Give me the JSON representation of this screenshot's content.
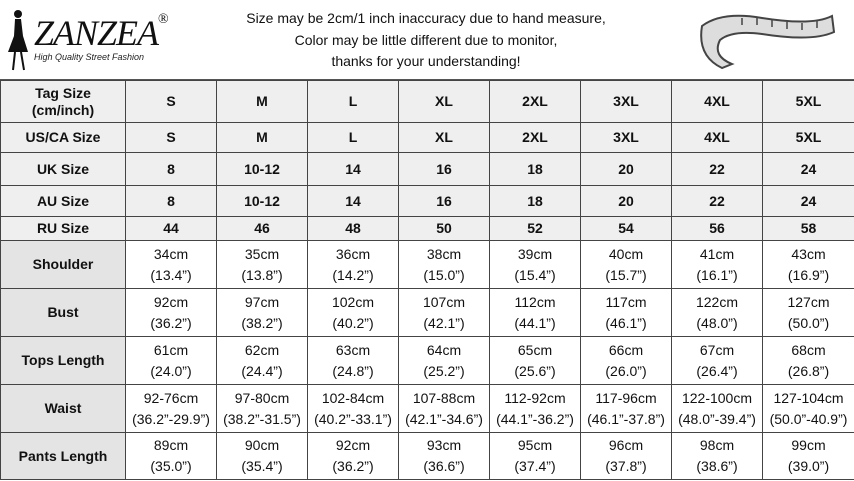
{
  "header": {
    "brand": "ZANZEA",
    "registered": "®",
    "tagline": "High Quality Street Fashion",
    "notice": [
      "Size may be 2cm/1 inch inaccuracy due to hand measure,",
      "Color may be little different due to monitor,",
      "thanks for your understanding!"
    ]
  },
  "table": {
    "rows": [
      {
        "label": [
          "Tag Size",
          "(cm/inch)"
        ],
        "cells": [
          [
            "S"
          ],
          [
            "M"
          ],
          [
            "L"
          ],
          [
            "XL"
          ],
          [
            "2XL"
          ],
          [
            "3XL"
          ],
          [
            "4XL"
          ],
          [
            "5XL"
          ]
        ]
      },
      {
        "label": [
          "US/CA Size"
        ],
        "cells": [
          [
            "S"
          ],
          [
            "M"
          ],
          [
            "L"
          ],
          [
            "XL"
          ],
          [
            "2XL"
          ],
          [
            "3XL"
          ],
          [
            "4XL"
          ],
          [
            "5XL"
          ]
        ]
      },
      {
        "label": [
          "UK Size"
        ],
        "cells": [
          [
            "8"
          ],
          [
            "10-12"
          ],
          [
            "14"
          ],
          [
            "16"
          ],
          [
            "18"
          ],
          [
            "20"
          ],
          [
            "22"
          ],
          [
            "24"
          ]
        ]
      },
      {
        "label": [
          "AU Size"
        ],
        "cells": [
          [
            "8"
          ],
          [
            "10-12"
          ],
          [
            "14"
          ],
          [
            "16"
          ],
          [
            "18"
          ],
          [
            "20"
          ],
          [
            "22"
          ],
          [
            "24"
          ]
        ]
      },
      {
        "label": [
          "RU Size"
        ],
        "cells": [
          [
            "44"
          ],
          [
            "46"
          ],
          [
            "48"
          ],
          [
            "50"
          ],
          [
            "52"
          ],
          [
            "54"
          ],
          [
            "56"
          ],
          [
            "58"
          ]
        ]
      },
      {
        "label": [
          "Shoulder"
        ],
        "cells": [
          [
            "34cm",
            "(13.4”)"
          ],
          [
            "35cm",
            "(13.8”)"
          ],
          [
            "36cm",
            "(14.2”)"
          ],
          [
            "38cm",
            "(15.0”)"
          ],
          [
            "39cm",
            "(15.4”)"
          ],
          [
            "40cm",
            "(15.7”)"
          ],
          [
            "41cm",
            "(16.1”)"
          ],
          [
            "43cm",
            "(16.9”)"
          ]
        ]
      },
      {
        "label": [
          "Bust"
        ],
        "cells": [
          [
            "92cm",
            "(36.2”)"
          ],
          [
            "97cm",
            "(38.2”)"
          ],
          [
            "102cm",
            "(40.2”)"
          ],
          [
            "107cm",
            "(42.1”)"
          ],
          [
            "112cm",
            "(44.1”)"
          ],
          [
            "117cm",
            "(46.1”)"
          ],
          [
            "122cm",
            "(48.0”)"
          ],
          [
            "127cm",
            "(50.0”)"
          ]
        ]
      },
      {
        "label": [
          "Tops Length"
        ],
        "cells": [
          [
            "61cm",
            "(24.0”)"
          ],
          [
            "62cm",
            "(24.4”)"
          ],
          [
            "63cm",
            "(24.8”)"
          ],
          [
            "64cm",
            "(25.2”)"
          ],
          [
            "65cm",
            "(25.6”)"
          ],
          [
            "66cm",
            "(26.0”)"
          ],
          [
            "67cm",
            "(26.4”)"
          ],
          [
            "68cm",
            "(26.8”)"
          ]
        ]
      },
      {
        "label": [
          "Waist"
        ],
        "cells": [
          [
            "92-76cm",
            "(36.2”-29.9”)"
          ],
          [
            "97-80cm",
            "(38.2”-31.5”)"
          ],
          [
            "102-84cm",
            "(40.2”-33.1”)"
          ],
          [
            "107-88cm",
            "(42.1”-34.6”)"
          ],
          [
            "112-92cm",
            "(44.1”-36.2”)"
          ],
          [
            "117-96cm",
            "(46.1”-37.8”)"
          ],
          [
            "122-100cm",
            "(48.0”-39.4”)"
          ],
          [
            "127-104cm",
            "(50.0”-40.9”)"
          ]
        ]
      },
      {
        "label": [
          "Pants Length"
        ],
        "cells": [
          [
            "89cm",
            "(35.0”)"
          ],
          [
            "90cm",
            "(35.4”)"
          ],
          [
            "92cm",
            "(36.2”)"
          ],
          [
            "93cm",
            "(36.6”)"
          ],
          [
            "95cm",
            "(37.4”)"
          ],
          [
            "96cm",
            "(37.8”)"
          ],
          [
            "98cm",
            "(38.6”)"
          ],
          [
            "99cm",
            "(39.0”)"
          ]
        ]
      }
    ]
  }
}
